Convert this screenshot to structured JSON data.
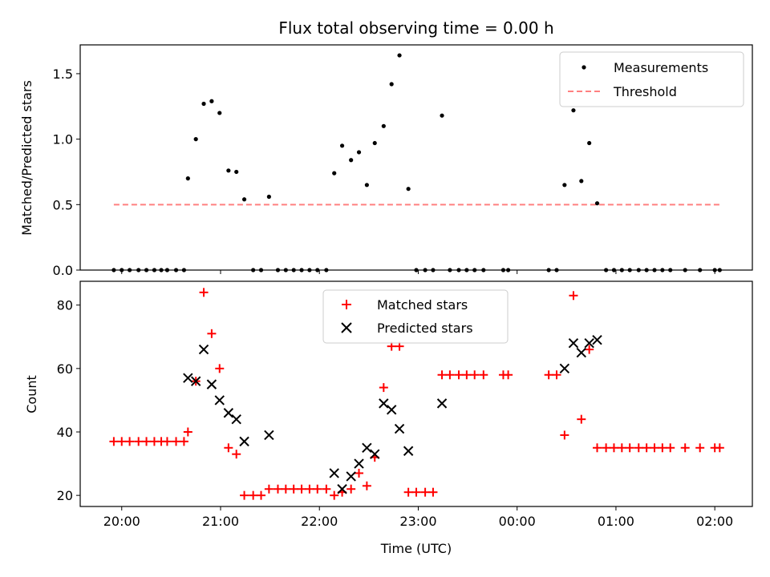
{
  "title": "Flux total observing time = 0.00 h",
  "x_axis": {
    "label": "Time (UTC)",
    "ticks": [
      {
        "label": "20:00",
        "h": 20.0
      },
      {
        "label": "21:00",
        "h": 21.0
      },
      {
        "label": "22:00",
        "h": 22.0
      },
      {
        "label": "23:00",
        "h": 23.0
      },
      {
        "label": "00:00",
        "h": 24.0
      },
      {
        "label": "01:00",
        "h": 25.0
      },
      {
        "label": "02:00",
        "h": 26.0
      }
    ],
    "range_h": [
      19.58,
      26.38
    ]
  },
  "chart_data": [
    {
      "type": "scatter",
      "panel": "top",
      "ylabel": "Matched/Predicted stars",
      "ylim": [
        0,
        1.72
      ],
      "yticks": [
        "0.0",
        "0.5",
        "1.0",
        "1.5"
      ],
      "grid": false,
      "legend_placement": "top-right",
      "legend": [
        "Measurements",
        "Threshold"
      ],
      "threshold": {
        "name": "Threshold",
        "value": 0.5,
        "x_range_h": [
          19.92,
          26.05
        ],
        "color": "#ff8080"
      },
      "series": [
        {
          "name": "Measurements",
          "color": "#000000",
          "points": [
            [
              19.92,
              0
            ],
            [
              20.0,
              0
            ],
            [
              20.08,
              0
            ],
            [
              20.17,
              0
            ],
            [
              20.25,
              0
            ],
            [
              20.33,
              0
            ],
            [
              20.4,
              0
            ],
            [
              20.46,
              0
            ],
            [
              20.55,
              0
            ],
            [
              20.63,
              0
            ],
            [
              20.67,
              0.7
            ],
            [
              20.75,
              1.0
            ],
            [
              20.83,
              1.27
            ],
            [
              20.91,
              1.29
            ],
            [
              20.99,
              1.2
            ],
            [
              21.08,
              0.76
            ],
            [
              21.16,
              0.75
            ],
            [
              21.24,
              0.54
            ],
            [
              21.33,
              0
            ],
            [
              21.41,
              0
            ],
            [
              21.49,
              0.56
            ],
            [
              21.58,
              0
            ],
            [
              21.66,
              0
            ],
            [
              21.74,
              0
            ],
            [
              21.82,
              0
            ],
            [
              21.9,
              0
            ],
            [
              21.98,
              0
            ],
            [
              22.07,
              0
            ],
            [
              22.15,
              0.74
            ],
            [
              22.23,
              0.95
            ],
            [
              22.32,
              0.84
            ],
            [
              22.4,
              0.9
            ],
            [
              22.48,
              0.65
            ],
            [
              22.56,
              0.97
            ],
            [
              22.65,
              1.1
            ],
            [
              22.73,
              1.42
            ],
            [
              22.81,
              1.64
            ],
            [
              22.9,
              0.62
            ],
            [
              22.98,
              0
            ],
            [
              23.07,
              0
            ],
            [
              23.15,
              0
            ],
            [
              23.24,
              1.18
            ],
            [
              23.32,
              0
            ],
            [
              23.41,
              0
            ],
            [
              23.49,
              0
            ],
            [
              23.57,
              0
            ],
            [
              23.66,
              0
            ],
            [
              23.86,
              0
            ],
            [
              23.91,
              0
            ],
            [
              24.32,
              0
            ],
            [
              24.4,
              0
            ],
            [
              24.48,
              0.65
            ],
            [
              24.57,
              1.22
            ],
            [
              24.65,
              0.68
            ],
            [
              24.73,
              0.97
            ],
            [
              24.81,
              0.51
            ],
            [
              24.9,
              0
            ],
            [
              24.98,
              0
            ],
            [
              25.06,
              0
            ],
            [
              25.14,
              0
            ],
            [
              25.23,
              0
            ],
            [
              25.31,
              0
            ],
            [
              25.39,
              0
            ],
            [
              25.47,
              0
            ],
            [
              25.55,
              0
            ],
            [
              25.7,
              0
            ],
            [
              25.85,
              0
            ],
            [
              26.0,
              0
            ],
            [
              26.05,
              0
            ]
          ]
        }
      ]
    },
    {
      "type": "scatter",
      "panel": "bottom",
      "ylabel": "Count",
      "ylim": [
        16.5,
        87.5
      ],
      "yticks": [
        "20",
        "40",
        "60",
        "80"
      ],
      "grid": false,
      "legend_placement": "top-center",
      "legend": [
        "Matched stars",
        "Predicted stars"
      ],
      "series": [
        {
          "name": "Matched stars",
          "marker": "plus",
          "color": "#ff0000",
          "points": [
            [
              19.92,
              37
            ],
            [
              20.0,
              37
            ],
            [
              20.08,
              37
            ],
            [
              20.17,
              37
            ],
            [
              20.25,
              37
            ],
            [
              20.33,
              37
            ],
            [
              20.4,
              37
            ],
            [
              20.46,
              37
            ],
            [
              20.55,
              37
            ],
            [
              20.63,
              37
            ],
            [
              20.67,
              40
            ],
            [
              20.75,
              56
            ],
            [
              20.83,
              84
            ],
            [
              20.91,
              71
            ],
            [
              20.99,
              60
            ],
            [
              21.08,
              35
            ],
            [
              21.16,
              33
            ],
            [
              21.24,
              20
            ],
            [
              21.33,
              20
            ],
            [
              21.41,
              20
            ],
            [
              21.49,
              22
            ],
            [
              21.58,
              22
            ],
            [
              21.66,
              22
            ],
            [
              21.74,
              22
            ],
            [
              21.82,
              22
            ],
            [
              21.9,
              22
            ],
            [
              21.98,
              22
            ],
            [
              22.07,
              22
            ],
            [
              22.15,
              20
            ],
            [
              22.23,
              21
            ],
            [
              22.32,
              22
            ],
            [
              22.4,
              27
            ],
            [
              22.48,
              23
            ],
            [
              22.56,
              32
            ],
            [
              22.65,
              54
            ],
            [
              22.73,
              67
            ],
            [
              22.81,
              67
            ],
            [
              22.9,
              21
            ],
            [
              22.98,
              21
            ],
            [
              23.07,
              21
            ],
            [
              23.15,
              21
            ],
            [
              23.24,
              58
            ],
            [
              23.32,
              58
            ],
            [
              23.41,
              58
            ],
            [
              23.49,
              58
            ],
            [
              23.57,
              58
            ],
            [
              23.66,
              58
            ],
            [
              23.86,
              58
            ],
            [
              23.91,
              58
            ],
            [
              24.32,
              58
            ],
            [
              24.4,
              58
            ],
            [
              24.48,
              39
            ],
            [
              24.57,
              83
            ],
            [
              24.65,
              44
            ],
            [
              24.73,
              66
            ],
            [
              24.81,
              35
            ],
            [
              24.9,
              35
            ],
            [
              24.98,
              35
            ],
            [
              25.06,
              35
            ],
            [
              25.14,
              35
            ],
            [
              25.23,
              35
            ],
            [
              25.31,
              35
            ],
            [
              25.39,
              35
            ],
            [
              25.47,
              35
            ],
            [
              25.55,
              35
            ],
            [
              25.7,
              35
            ],
            [
              25.85,
              35
            ],
            [
              26.0,
              35
            ],
            [
              26.05,
              35
            ]
          ]
        },
        {
          "name": "Predicted stars",
          "marker": "x",
          "color": "#000000",
          "points": [
            [
              20.67,
              57
            ],
            [
              20.75,
              56
            ],
            [
              20.83,
              66
            ],
            [
              20.91,
              55
            ],
            [
              20.99,
              50
            ],
            [
              21.08,
              46
            ],
            [
              21.16,
              44
            ],
            [
              21.24,
              37
            ],
            [
              21.49,
              39
            ],
            [
              22.15,
              27
            ],
            [
              22.23,
              22
            ],
            [
              22.32,
              26
            ],
            [
              22.4,
              30
            ],
            [
              22.48,
              35
            ],
            [
              22.56,
              33
            ],
            [
              22.65,
              49
            ],
            [
              22.73,
              47
            ],
            [
              22.81,
              41
            ],
            [
              22.9,
              34
            ],
            [
              23.24,
              49
            ],
            [
              24.48,
              60
            ],
            [
              24.57,
              68
            ],
            [
              24.65,
              65
            ],
            [
              24.73,
              68
            ],
            [
              24.81,
              69
            ]
          ]
        }
      ]
    }
  ]
}
